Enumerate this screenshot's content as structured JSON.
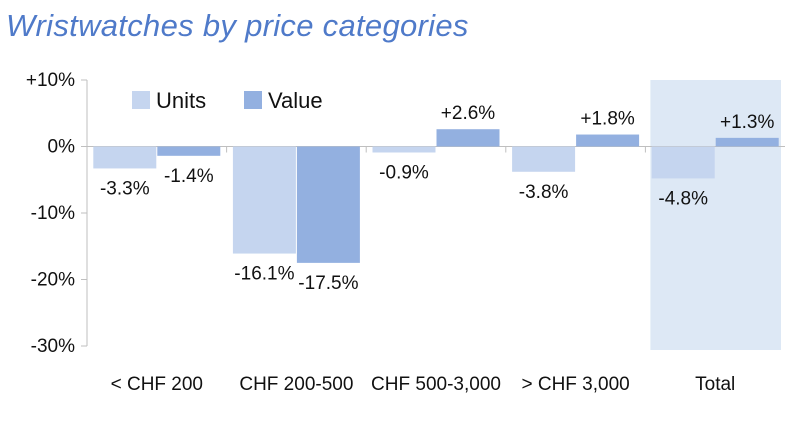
{
  "chart_data": {
    "type": "bar",
    "title": "Wristwatches by price categories",
    "categories": [
      "< CHF 200",
      "CHF 200-500",
      "CHF 500-3,000",
      "> CHF 3,000",
      "Total"
    ],
    "series": [
      {
        "name": "Units",
        "values": [
          -3.3,
          -16.1,
          -0.9,
          -3.8,
          -4.8
        ],
        "labels": [
          "-3.3%",
          "-16.1%",
          "-0.9%",
          "-3.8%",
          "-4.8%"
        ],
        "color": "#c5d5ef"
      },
      {
        "name": "Value",
        "values": [
          -1.4,
          -17.5,
          2.6,
          1.8,
          1.3
        ],
        "labels": [
          "-1.4%",
          "-17.5%",
          "+2.6%",
          "+1.8%",
          "+1.3%"
        ],
        "color": "#93b0e0"
      }
    ],
    "yticks": [
      10,
      0,
      -10,
      -20,
      -30
    ],
    "ytick_labels": [
      "+10%",
      "0%",
      "-10%",
      "-20%",
      "-30%"
    ],
    "ylim": [
      -30,
      10
    ],
    "xlabel": "",
    "ylabel": "",
    "legend_position": "top-left",
    "highlighted_category": "Total",
    "highlight_color": "#dde8f5",
    "grid": false
  }
}
